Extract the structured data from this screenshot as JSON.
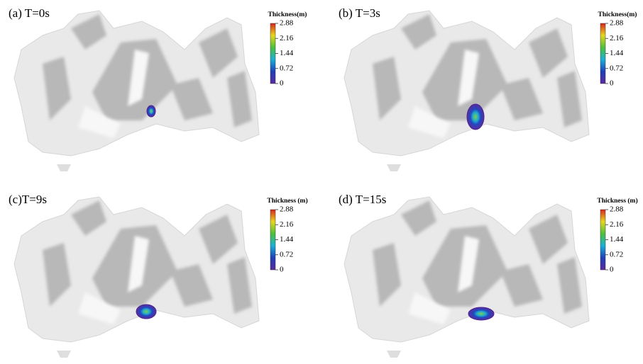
{
  "panels": [
    {
      "label": "(a) T=0s",
      "colorbar_title": "Thickness(m)",
      "colorbar_lim": [
        0,
        2.88
      ],
      "colorbar_ticks": [
        2.88,
        2.16,
        1.44,
        0.72,
        0
      ]
    },
    {
      "label": "(b) T=3s",
      "colorbar_title": "Thickness(m)",
      "colorbar_lim": [
        0,
        2.88
      ],
      "colorbar_ticks": [
        2.88,
        2.16,
        1.44,
        0.72,
        0
      ]
    },
    {
      "label": "(c)T=9s",
      "colorbar_title": "Thickness (m)",
      "colorbar_lim": [
        0,
        2.88
      ],
      "colorbar_ticks": [
        2.88,
        2.16,
        1.44,
        0.72,
        0
      ]
    },
    {
      "label": "(d) T=15s",
      "colorbar_title": "Thickness (m)",
      "colorbar_lim": [
        0,
        2.88
      ],
      "colorbar_ticks": [
        2.88,
        2.16,
        1.44,
        0.72,
        0
      ]
    }
  ]
}
